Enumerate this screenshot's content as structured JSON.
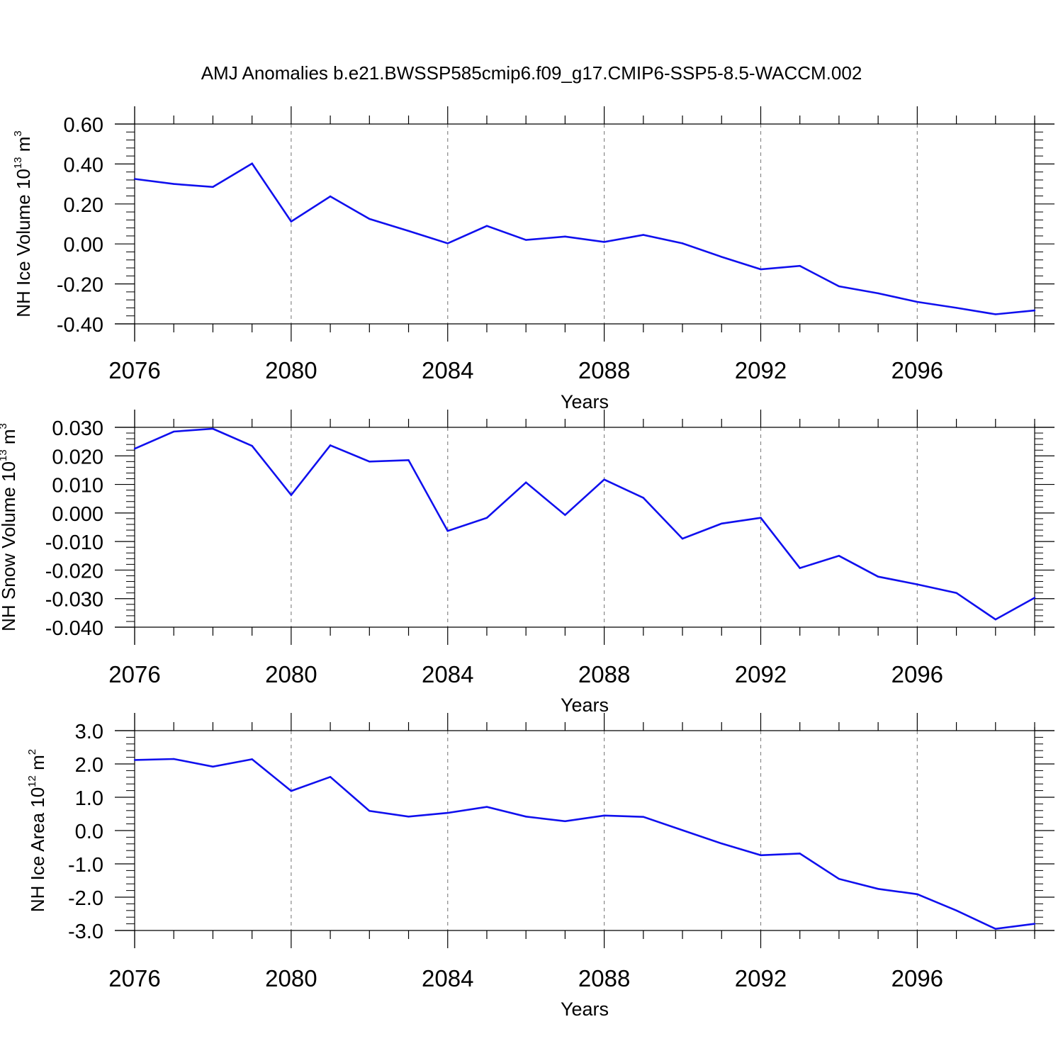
{
  "title": "AMJ Anomalies b.e21.BWSSP585cmip6.f09_g17.CMIP6-SSP5-8.5-WACCM.002",
  "colors": {
    "line": "#1010ee",
    "axis": "#000000",
    "grid": "#888888"
  },
  "chart_data": [
    {
      "type": "line",
      "xlabel": "Years",
      "ylabel": {
        "prefix": "NH Ice Volume 10",
        "exp": "13",
        "unit": " m",
        "unit_exp": "3"
      },
      "x_ticks": [
        "2076",
        "2080",
        "2084",
        "2088",
        "2092",
        "2096"
      ],
      "y_ticks": [
        "0.60",
        "0.40",
        "0.20",
        "0.00",
        "-0.20",
        "-0.40"
      ],
      "ylim": [
        -0.4,
        0.6
      ],
      "xlim": [
        2076,
        2099
      ],
      "grid": "vertical dashed",
      "x": [
        2076,
        2077,
        2078,
        2079,
        2080,
        2081,
        2082,
        2083,
        2084,
        2085,
        2086,
        2087,
        2088,
        2089,
        2090,
        2091,
        2092,
        2093,
        2094,
        2095,
        2096,
        2097,
        2098,
        2099
      ],
      "values": [
        0.325,
        0.3,
        0.285,
        0.402,
        0.112,
        0.238,
        0.125,
        0.065,
        0.003,
        0.09,
        0.02,
        0.037,
        0.01,
        0.045,
        0.003,
        -0.065,
        -0.127,
        -0.11,
        -0.212,
        -0.247,
        -0.29,
        -0.32,
        -0.352,
        -0.333
      ]
    },
    {
      "type": "line",
      "xlabel": "Years",
      "ylabel": {
        "prefix": "NH Snow Volume 10",
        "exp": "13",
        "unit": " m",
        "unit_exp": "3"
      },
      "x_ticks": [
        "2076",
        "2080",
        "2084",
        "2088",
        "2092",
        "2096"
      ],
      "y_ticks": [
        "0.030",
        "0.020",
        "0.010",
        "0.000",
        "-0.010",
        "-0.020",
        "-0.030",
        "-0.040"
      ],
      "ylim": [
        -0.04,
        0.03
      ],
      "xlim": [
        2076,
        2099
      ],
      "grid": "vertical dashed",
      "x": [
        2076,
        2077,
        2078,
        2079,
        2080,
        2081,
        2082,
        2083,
        2084,
        2085,
        2086,
        2087,
        2088,
        2089,
        2090,
        2091,
        2092,
        2093,
        2094,
        2095,
        2096,
        2097,
        2098,
        2099
      ],
      "values": [
        0.0225,
        0.0285,
        0.0295,
        0.0235,
        0.0063,
        0.0237,
        0.018,
        0.0185,
        -0.0063,
        -0.0017,
        0.0107,
        -0.0007,
        0.0117,
        0.0053,
        -0.009,
        -0.0037,
        -0.0017,
        -0.0193,
        -0.015,
        -0.0223,
        -0.025,
        -0.028,
        -0.0373,
        -0.0297
      ]
    },
    {
      "type": "line",
      "xlabel": "Years",
      "ylabel": {
        "prefix": "NH Ice Area 10",
        "exp": "12",
        "unit": " m",
        "unit_exp": "2"
      },
      "x_ticks": [
        "2076",
        "2080",
        "2084",
        "2088",
        "2092",
        "2096"
      ],
      "y_ticks": [
        "3.0",
        "2.0",
        "1.0",
        "0.0",
        "-1.0",
        "-2.0",
        "-3.0"
      ],
      "ylim": [
        -3.0,
        3.0
      ],
      "xlim": [
        2076,
        2099
      ],
      "grid": "vertical dashed",
      "x": [
        2076,
        2077,
        2078,
        2079,
        2080,
        2081,
        2082,
        2083,
        2084,
        2085,
        2086,
        2087,
        2088,
        2089,
        2090,
        2091,
        2092,
        2093,
        2094,
        2095,
        2096,
        2097,
        2098,
        2099
      ],
      "values": [
        2.12,
        2.15,
        1.92,
        2.14,
        1.19,
        1.61,
        0.59,
        0.42,
        0.53,
        0.71,
        0.42,
        0.28,
        0.45,
        0.41,
        0.01,
        -0.39,
        -0.74,
        -0.69,
        -1.45,
        -1.75,
        -1.91,
        -2.4,
        -2.95,
        -2.8
      ]
    }
  ]
}
